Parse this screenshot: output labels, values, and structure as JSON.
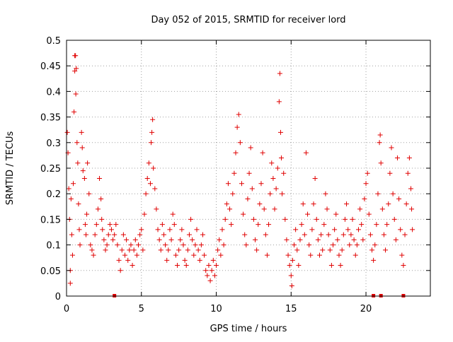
{
  "chart_data": {
    "type": "scatter",
    "title": "Day 052 of 2015, SRMTID for receiver lord",
    "xlabel": "GPS time / hours",
    "ylabel": "SRMTID / TECUs",
    "xlim": [
      0,
      24.3
    ],
    "ylim": [
      0,
      0.5
    ],
    "x_ticks": [
      0,
      5,
      10,
      15,
      20
    ],
    "y_ticks": [
      0,
      0.05,
      0.1,
      0.15,
      0.2,
      0.25,
      0.3,
      0.35,
      0.4,
      0.45,
      0.5
    ],
    "x_tick_labels": [
      "0",
      "5",
      "10",
      "15",
      "20"
    ],
    "y_tick_labels": [
      "0",
      "0.05",
      "0.1",
      "0.15",
      "0.2",
      "0.25",
      "0.3",
      "0.35",
      "0.4",
      "0.45",
      "0.5"
    ],
    "grid": true,
    "marker": "+",
    "color": "#e00000",
    "series": [
      {
        "name": "SRMTID",
        "points": [
          [
            0.05,
            0.32
          ],
          [
            0.1,
            0.28
          ],
          [
            0.15,
            0.21
          ],
          [
            0.2,
            0.15
          ],
          [
            0.25,
            0.05
          ],
          [
            0.25,
            0.025
          ],
          [
            0.3,
            0.19
          ],
          [
            0.35,
            0.12
          ],
          [
            0.4,
            0.08
          ],
          [
            0.45,
            0.22
          ],
          [
            0.5,
            0.36
          ],
          [
            0.55,
            0.44
          ],
          [
            0.55,
            0.47
          ],
          [
            0.6,
            0.47
          ],
          [
            0.62,
            0.395
          ],
          [
            0.65,
            0.445
          ],
          [
            0.7,
            0.3
          ],
          [
            0.75,
            0.26
          ],
          [
            0.8,
            0.18
          ],
          [
            0.85,
            0.13
          ],
          [
            0.9,
            0.1
          ],
          [
            1.0,
            0.32
          ],
          [
            1.05,
            0.29
          ],
          [
            1.1,
            0.245
          ],
          [
            1.2,
            0.23
          ],
          [
            1.25,
            0.14
          ],
          [
            1.3,
            0.12
          ],
          [
            1.35,
            0.16
          ],
          [
            1.4,
            0.26
          ],
          [
            1.5,
            0.2
          ],
          [
            1.6,
            0.1
          ],
          [
            1.7,
            0.09
          ],
          [
            1.8,
            0.08
          ],
          [
            1.9,
            0.12
          ],
          [
            2.0,
            0.14
          ],
          [
            2.1,
            0.17
          ],
          [
            2.2,
            0.23
          ],
          [
            2.3,
            0.19
          ],
          [
            2.35,
            0.15
          ],
          [
            2.4,
            0.13
          ],
          [
            2.5,
            0.11
          ],
          [
            2.6,
            0.09
          ],
          [
            2.7,
            0.1
          ],
          [
            2.8,
            0.12
          ],
          [
            2.9,
            0.14
          ],
          [
            3.0,
            0.13
          ],
          [
            3.1,
            0.11
          ],
          [
            3.2,
            0.12
          ],
          [
            3.3,
            0.14
          ],
          [
            3.4,
            0.1
          ],
          [
            3.5,
            0.07
          ],
          [
            3.6,
            0.05
          ],
          [
            3.7,
            0.09
          ],
          [
            3.8,
            0.12
          ],
          [
            3.9,
            0.08
          ],
          [
            4.0,
            0.11
          ],
          [
            4.1,
            0.07
          ],
          [
            4.2,
            0.09
          ],
          [
            4.3,
            0.1
          ],
          [
            4.4,
            0.06
          ],
          [
            4.5,
            0.09
          ],
          [
            4.6,
            0.11
          ],
          [
            4.7,
            0.08
          ],
          [
            4.8,
            0.1
          ],
          [
            4.9,
            0.12
          ],
          [
            5.0,
            0.13
          ],
          [
            5.1,
            0.09
          ],
          [
            5.2,
            0.16
          ],
          [
            5.3,
            0.2
          ],
          [
            5.4,
            0.23
          ],
          [
            5.5,
            0.26
          ],
          [
            5.6,
            0.22
          ],
          [
            5.65,
            0.3
          ],
          [
            5.7,
            0.32
          ],
          [
            5.75,
            0.345
          ],
          [
            5.8,
            0.25
          ],
          [
            5.9,
            0.21
          ],
          [
            6.0,
            0.17
          ],
          [
            6.1,
            0.13
          ],
          [
            6.2,
            0.11
          ],
          [
            6.3,
            0.09
          ],
          [
            6.4,
            0.14
          ],
          [
            6.5,
            0.12
          ],
          [
            6.6,
            0.1
          ],
          [
            6.7,
            0.07
          ],
          [
            6.8,
            0.09
          ],
          [
            6.9,
            0.13
          ],
          [
            7.0,
            0.11
          ],
          [
            7.1,
            0.16
          ],
          [
            7.2,
            0.14
          ],
          [
            7.3,
            0.08
          ],
          [
            7.4,
            0.06
          ],
          [
            7.5,
            0.09
          ],
          [
            7.6,
            0.11
          ],
          [
            7.7,
            0.13
          ],
          [
            7.8,
            0.1
          ],
          [
            7.9,
            0.07
          ],
          [
            8.0,
            0.06
          ],
          [
            8.1,
            0.09
          ],
          [
            8.2,
            0.12
          ],
          [
            8.3,
            0.15
          ],
          [
            8.4,
            0.11
          ],
          [
            8.5,
            0.08
          ],
          [
            8.6,
            0.1
          ],
          [
            8.7,
            0.13
          ],
          [
            8.8,
            0.09
          ],
          [
            8.9,
            0.07
          ],
          [
            9.0,
            0.1
          ],
          [
            9.1,
            0.12
          ],
          [
            9.2,
            0.08
          ],
          [
            9.3,
            0.05
          ],
          [
            9.4,
            0.04
          ],
          [
            9.5,
            0.06
          ],
          [
            9.6,
            0.03
          ],
          [
            9.7,
            0.05
          ],
          [
            9.8,
            0.07
          ],
          [
            9.9,
            0.04
          ],
          [
            10.0,
            0.06
          ],
          [
            10.1,
            0.09
          ],
          [
            10.2,
            0.11
          ],
          [
            10.3,
            0.08
          ],
          [
            10.4,
            0.13
          ],
          [
            10.5,
            0.1
          ],
          [
            10.6,
            0.15
          ],
          [
            10.7,
            0.18
          ],
          [
            10.8,
            0.22
          ],
          [
            10.9,
            0.17
          ],
          [
            11.0,
            0.14
          ],
          [
            11.1,
            0.2
          ],
          [
            11.2,
            0.24
          ],
          [
            11.3,
            0.28
          ],
          [
            11.4,
            0.33
          ],
          [
            11.5,
            0.355
          ],
          [
            11.6,
            0.3
          ],
          [
            11.7,
            0.22
          ],
          [
            11.8,
            0.16
          ],
          [
            11.9,
            0.12
          ],
          [
            12.0,
            0.1
          ],
          [
            12.1,
            0.19
          ],
          [
            12.2,
            0.24
          ],
          [
            12.3,
            0.29
          ],
          [
            12.4,
            0.21
          ],
          [
            12.5,
            0.15
          ],
          [
            12.6,
            0.11
          ],
          [
            12.7,
            0.09
          ],
          [
            12.8,
            0.14
          ],
          [
            12.9,
            0.18
          ],
          [
            13.0,
            0.22
          ],
          [
            13.1,
            0.28
          ],
          [
            13.2,
            0.17
          ],
          [
            13.3,
            0.12
          ],
          [
            13.4,
            0.08
          ],
          [
            13.5,
            0.14
          ],
          [
            13.6,
            0.2
          ],
          [
            13.7,
            0.26
          ],
          [
            13.8,
            0.23
          ],
          [
            13.9,
            0.17
          ],
          [
            14.0,
            0.21
          ],
          [
            14.1,
            0.25
          ],
          [
            14.2,
            0.38
          ],
          [
            14.25,
            0.435
          ],
          [
            14.3,
            0.32
          ],
          [
            14.35,
            0.27
          ],
          [
            14.4,
            0.2
          ],
          [
            14.5,
            0.24
          ],
          [
            14.6,
            0.15
          ],
          [
            14.7,
            0.11
          ],
          [
            14.8,
            0.08
          ],
          [
            14.9,
            0.06
          ],
          [
            15.0,
            0.04
          ],
          [
            15.05,
            0.02
          ],
          [
            15.1,
            0.07
          ],
          [
            15.2,
            0.1
          ],
          [
            15.3,
            0.13
          ],
          [
            15.4,
            0.09
          ],
          [
            15.5,
            0.06
          ],
          [
            15.6,
            0.11
          ],
          [
            15.7,
            0.14
          ],
          [
            15.8,
            0.18
          ],
          [
            15.9,
            0.12
          ],
          [
            16.0,
            0.28
          ],
          [
            16.1,
            0.16
          ],
          [
            16.2,
            0.1
          ],
          [
            16.3,
            0.08
          ],
          [
            16.4,
            0.13
          ],
          [
            16.5,
            0.18
          ],
          [
            16.6,
            0.23
          ],
          [
            16.7,
            0.15
          ],
          [
            16.8,
            0.11
          ],
          [
            16.9,
            0.08
          ],
          [
            17.0,
            0.12
          ],
          [
            17.1,
            0.09
          ],
          [
            17.2,
            0.14
          ],
          [
            17.3,
            0.2
          ],
          [
            17.4,
            0.17
          ],
          [
            17.5,
            0.12
          ],
          [
            17.6,
            0.09
          ],
          [
            17.7,
            0.06
          ],
          [
            17.8,
            0.1
          ],
          [
            17.9,
            0.13
          ],
          [
            18.0,
            0.16
          ],
          [
            18.1,
            0.11
          ],
          [
            18.2,
            0.08
          ],
          [
            18.3,
            0.06
          ],
          [
            18.4,
            0.09
          ],
          [
            18.5,
            0.12
          ],
          [
            18.6,
            0.15
          ],
          [
            18.7,
            0.18
          ],
          [
            18.8,
            0.13
          ],
          [
            18.9,
            0.1
          ],
          [
            19.0,
            0.12
          ],
          [
            19.1,
            0.15
          ],
          [
            19.2,
            0.11
          ],
          [
            19.3,
            0.08
          ],
          [
            19.4,
            0.1
          ],
          [
            19.5,
            0.13
          ],
          [
            19.6,
            0.17
          ],
          [
            19.7,
            0.14
          ],
          [
            19.8,
            0.11
          ],
          [
            19.9,
            0.19
          ],
          [
            20.0,
            0.22
          ],
          [
            20.1,
            0.24
          ],
          [
            20.2,
            0.16
          ],
          [
            20.3,
            0.12
          ],
          [
            20.4,
            0.09
          ],
          [
            20.5,
            0.07
          ],
          [
            20.6,
            0.1
          ],
          [
            20.7,
            0.14
          ],
          [
            20.8,
            0.2
          ],
          [
            20.9,
            0.3
          ],
          [
            20.95,
            0.315
          ],
          [
            21.0,
            0.26
          ],
          [
            21.1,
            0.17
          ],
          [
            21.2,
            0.12
          ],
          [
            21.3,
            0.09
          ],
          [
            21.4,
            0.14
          ],
          [
            21.5,
            0.18
          ],
          [
            21.6,
            0.24
          ],
          [
            21.7,
            0.29
          ],
          [
            21.8,
            0.2
          ],
          [
            21.9,
            0.15
          ],
          [
            22.0,
            0.11
          ],
          [
            22.1,
            0.27
          ],
          [
            22.2,
            0.19
          ],
          [
            22.3,
            0.13
          ],
          [
            22.4,
            0.08
          ],
          [
            22.5,
            0.06
          ],
          [
            22.6,
            0.12
          ],
          [
            22.7,
            0.18
          ],
          [
            22.8,
            0.24
          ],
          [
            22.9,
            0.27
          ],
          [
            23.0,
            0.21
          ],
          [
            23.05,
            0.17
          ],
          [
            23.1,
            0.13
          ]
        ],
        "zero_markers": [
          3.2,
          20.5,
          21.0,
          22.5
        ]
      }
    ]
  }
}
